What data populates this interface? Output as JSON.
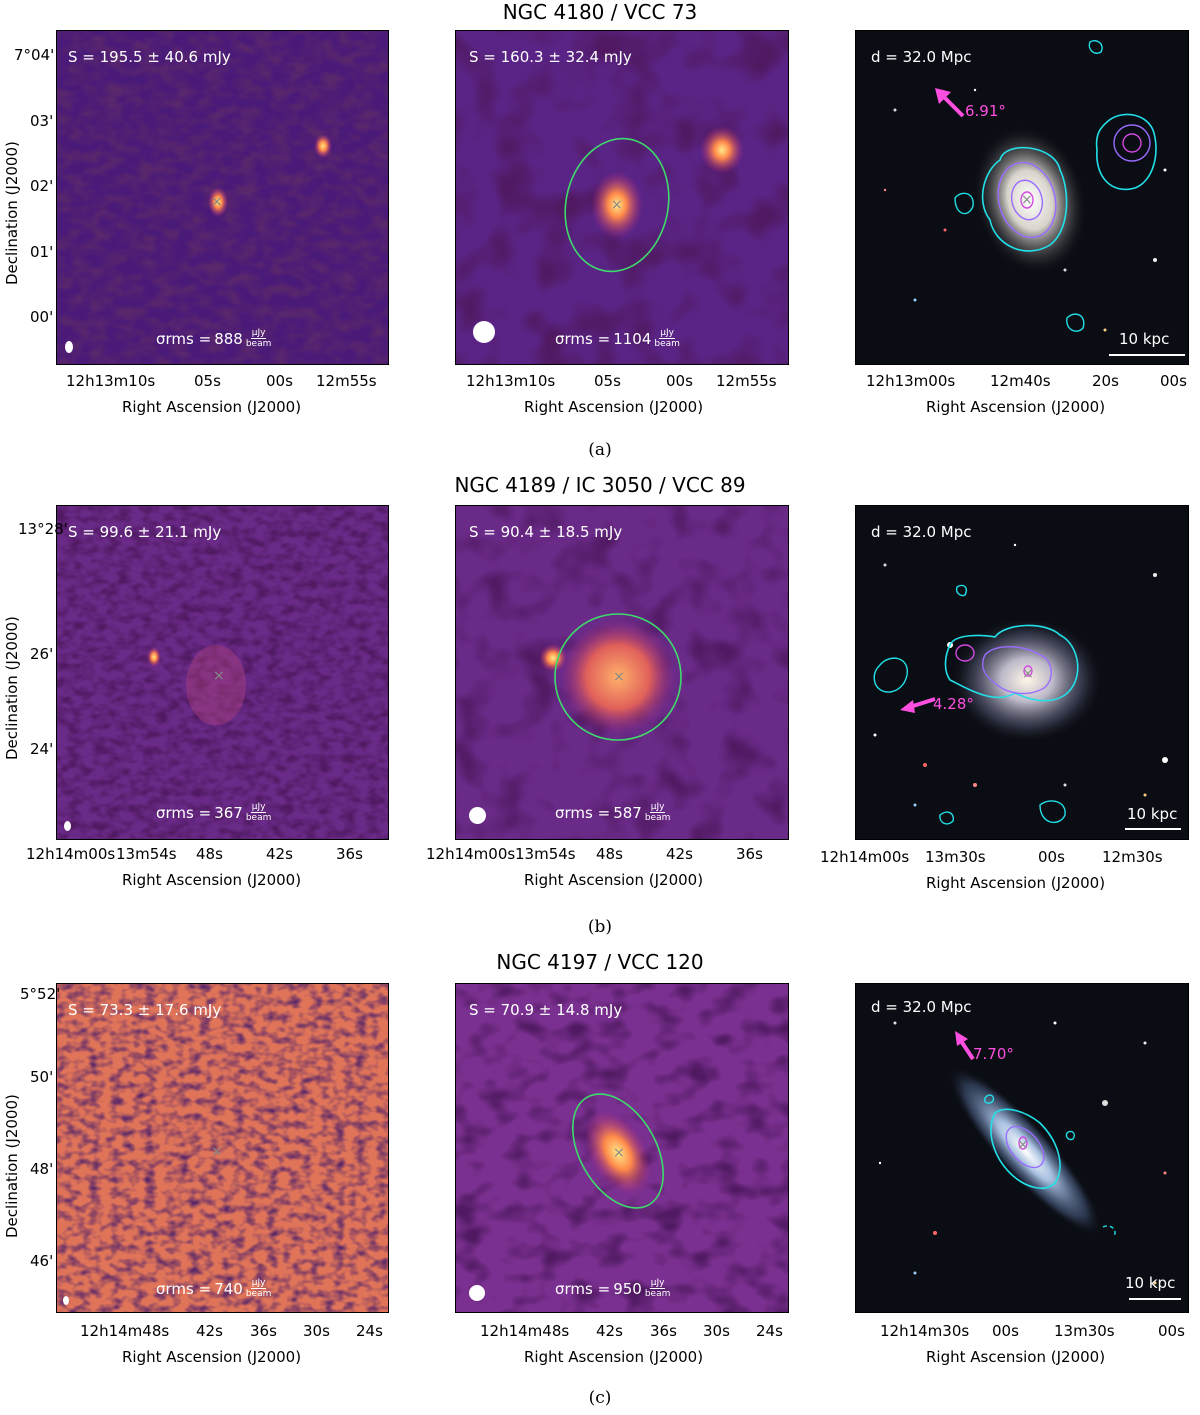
{
  "rows": [
    {
      "title": "NGC 4180 / VCC 73",
      "caption": "(a)",
      "left_flux": "S = 195.5 ± 40.6 mJy",
      "mid_flux": "S = 160.3 ± 32.4 mJy",
      "left_sigma": "888",
      "mid_sigma": "1104",
      "distance": "d = 32.0 Mpc",
      "pa_label": "6.91°",
      "scale_label": "10 kpc",
      "dec_ticks": [
        "7°04'",
        "03'",
        "02'",
        "01'",
        "00'"
      ],
      "ra_ticks_radio": [
        "12h13m10s",
        "05s",
        "00s",
        "12m55s"
      ],
      "ra_ticks_optical": [
        "12h13m00s",
        "12m40s",
        "20s",
        "00s"
      ]
    },
    {
      "title": "NGC 4189 / IC 3050 / VCC 89",
      "caption": "(b)",
      "left_flux": "S = 99.6 ± 21.1 mJy",
      "mid_flux": "S = 90.4 ± 18.5 mJy",
      "left_sigma": "367",
      "mid_sigma": "587",
      "distance": "d = 32.0 Mpc",
      "pa_label": "4.28°",
      "scale_label": "10 kpc",
      "dec_ticks": [
        "13°28'",
        "26'",
        "24'"
      ],
      "ra_ticks_radio": [
        "12h14m00s",
        "13m54s",
        "48s",
        "42s",
        "36s"
      ],
      "ra_ticks_optical": [
        "12h14m00s",
        "13m30s",
        "00s",
        "12m30s"
      ]
    },
    {
      "title": "NGC 4197 / VCC 120",
      "caption": "(c)",
      "left_flux": "S = 73.3 ± 17.6 mJy",
      "mid_flux": "S = 70.9 ± 14.8 mJy",
      "left_sigma": "740",
      "mid_sigma": "950",
      "distance": "d = 32.0 Mpc",
      "pa_label": "7.70°",
      "scale_label": "10 kpc",
      "dec_ticks": [
        "5°52'",
        "50'",
        "48'",
        "46'"
      ],
      "ra_ticks_radio": [
        "12h14m48s",
        "42s",
        "36s",
        "30s",
        "24s"
      ],
      "ra_ticks_optical": [
        "12h14m30s",
        "00s",
        "13m30s",
        "00s"
      ]
    }
  ],
  "axis_labels": {
    "x": "Right Ascension (J2000)",
    "y": "Declination (J2000)",
    "sigma_prefix": "σrms =",
    "unit_num": "μJy",
    "unit_den": "beam"
  },
  "colors": {
    "radio_bg": "#3a1460",
    "ellipse": "#3ddc6a",
    "contour_outer": "#22e0e8",
    "contour_inner": "#9a6cff",
    "contour_core": "#d04ae0",
    "pa_arrow": "#ff4fe0"
  },
  "icons": [
    "cross-marker-icon",
    "beam-ellipse-icon",
    "pa-arrow-icon"
  ]
}
